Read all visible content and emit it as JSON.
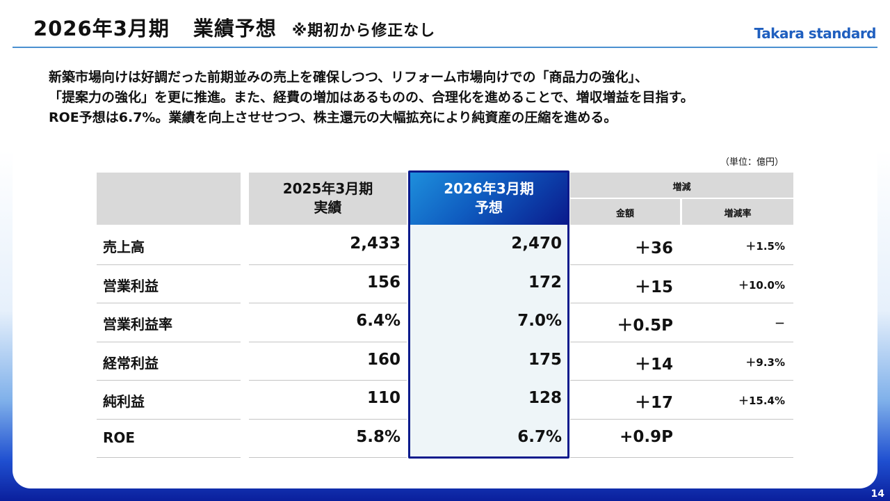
{
  "header": {
    "title_main": "2026年3月期",
    "title_sub": "業績予想",
    "title_note": "※期初から修正なし",
    "logo": "Takara standard"
  },
  "summary": {
    "line1": "新築市場向けは好調だった前期並みの売上を確保しつつ、リフォーム市場向けでの「商品力の強化」、",
    "line2": "「提案力の強化」を更に推進。また、経費の増加はあるものの、合理化を進めることで、増収増益を目指す。",
    "line3": "ROE予想は6.7%。業績を向上させせつつ、株主還元の大幅拡充により純資産の圧縮を進める。"
  },
  "table": {
    "unit": "（単位：億円）",
    "col_prev_line1": "2025年3月期",
    "col_prev_line2": "実績",
    "col_fcst_line1": "2026年3月期",
    "col_fcst_line2": "予想",
    "col_change": "増減",
    "col_amount": "金額",
    "col_rate": "増減率",
    "rows": [
      {
        "label": "売上高",
        "prev": "2,433",
        "fcst": "2,470",
        "amount": "＋36",
        "rate": "＋1.5%"
      },
      {
        "label": "営業利益",
        "prev": "156",
        "fcst": "172",
        "amount": "＋15",
        "rate": "＋10.0%"
      },
      {
        "label": "営業利益率",
        "prev": "6.4%",
        "fcst": "7.0%",
        "amount": "＋0.5P",
        "rate": "－"
      },
      {
        "label": "経常利益",
        "prev": "160",
        "fcst": "175",
        "amount": "＋14",
        "rate": "＋9.3%"
      },
      {
        "label": "純利益",
        "prev": "110",
        "fcst": "128",
        "amount": "＋17",
        "rate": "＋15.4%"
      },
      {
        "label": "ROE",
        "prev": "5.8%",
        "fcst": "6.7%",
        "amount": "+0.9P",
        "rate": ""
      }
    ]
  },
  "page_number": "14"
}
